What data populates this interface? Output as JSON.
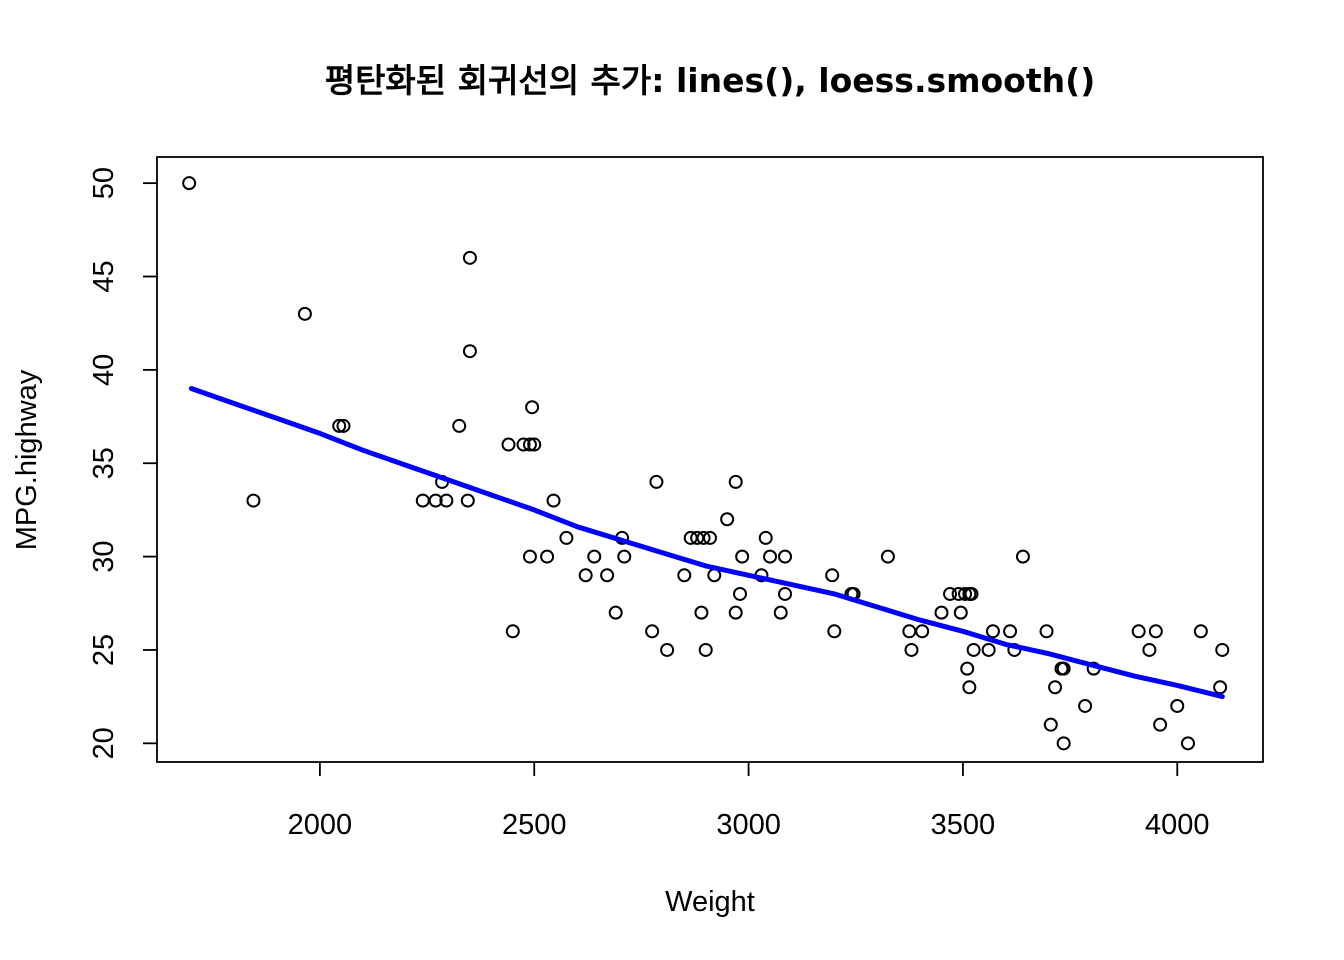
{
  "chart_data": {
    "type": "scatter",
    "title": "평탄화된 회귀선의 추가: lines(), loess.smooth()",
    "xlabel": "Weight",
    "ylabel": "MPG.highway",
    "xlim": [
      1620,
      4200
    ],
    "ylim": [
      19,
      51.4
    ],
    "x_ticks": [
      2000,
      2500,
      3000,
      3500,
      4000
    ],
    "y_ticks": [
      20,
      25,
      30,
      35,
      40,
      45,
      50
    ],
    "grid": false,
    "legend": "none",
    "points": {
      "x": [
        1695,
        1845,
        1965,
        2045,
        2055,
        2240,
        2270,
        2285,
        2295,
        2325,
        2345,
        2350,
        2350,
        2440,
        2450,
        2475,
        2490,
        2490,
        2495,
        2500,
        2530,
        2545,
        2575,
        2620,
        2640,
        2670,
        2690,
        2705,
        2710,
        2775,
        2785,
        2810,
        2850,
        2865,
        2880,
        2890,
        2895,
        2900,
        2910,
        2920,
        2950,
        2970,
        2970,
        2980,
        2985,
        3030,
        3040,
        3050,
        3075,
        3085,
        3085,
        3195,
        3200,
        3240,
        3245,
        3325,
        3375,
        3380,
        3405,
        3450,
        3470,
        3490,
        3495,
        3505,
        3510,
        3515,
        3515,
        3520,
        3525,
        3560,
        3570,
        3610,
        3620,
        3640,
        3695,
        3705,
        3715,
        3730,
        3735,
        3735,
        3785,
        3805,
        3910,
        3935,
        3950,
        3960,
        4000,
        4025,
        4055,
        4100,
        4105
      ],
      "y": [
        50,
        33,
        43,
        37,
        37,
        33,
        33,
        34,
        33,
        37,
        33,
        46,
        41,
        36,
        26,
        36,
        30,
        36,
        38,
        36,
        30,
        33,
        31,
        29,
        30,
        29,
        27,
        31,
        30,
        26,
        34,
        25,
        29,
        31,
        31,
        27,
        31,
        25,
        31,
        29,
        32,
        34,
        27,
        28,
        30,
        29,
        31,
        30,
        27,
        28,
        30,
        29,
        26,
        28,
        28,
        30,
        26,
        25,
        26,
        27,
        28,
        28,
        27,
        28,
        24,
        23,
        28,
        28,
        25,
        25,
        26,
        26,
        25,
        30,
        26,
        21,
        23,
        24,
        24,
        20,
        22,
        24,
        26,
        25,
        26,
        21,
        22,
        20,
        26,
        23,
        25
      ]
    },
    "smooth_line": {
      "name": "",
      "color": "#0000ff",
      "x": [
        1700,
        1800,
        1900,
        2000,
        2100,
        2200,
        2300,
        2400,
        2500,
        2600,
        2700,
        2800,
        2900,
        3000,
        3100,
        3200,
        3300,
        3400,
        3500,
        3600,
        3700,
        3800,
        3900,
        4000,
        4105
      ],
      "y": [
        39.0,
        38.2,
        37.4,
        36.6,
        35.7,
        34.9,
        34.1,
        33.3,
        32.5,
        31.6,
        30.9,
        30.2,
        29.5,
        29.0,
        28.5,
        28.0,
        27.3,
        26.6,
        26.0,
        25.3,
        24.8,
        24.2,
        23.6,
        23.1,
        22.5
      ]
    }
  }
}
